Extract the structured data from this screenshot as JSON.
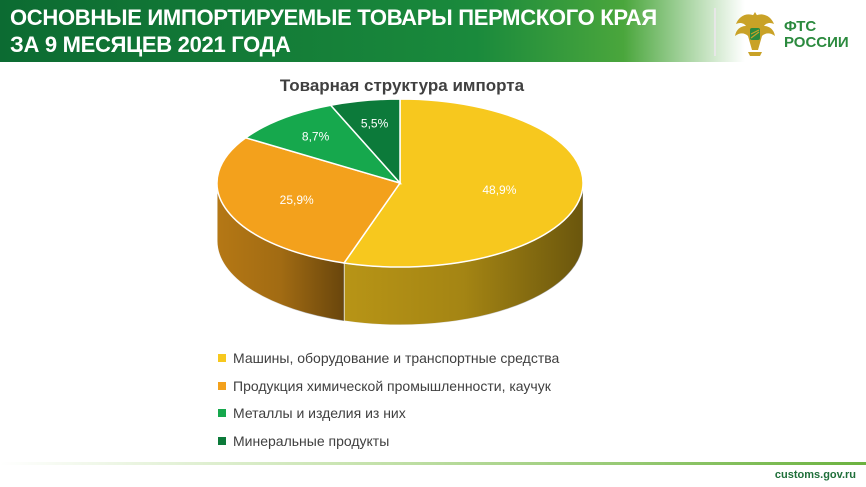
{
  "header": {
    "title_line1": "ОСНОВНЫЕ ИМПОРТИРУЕМЫЕ ТОВАРЫ ПЕРМСКОГО КРАЯ",
    "title_line2": "ЗА 9 МЕСЯЦЕВ 2021 ГОДА"
  },
  "logo": {
    "line1": "ФТС",
    "line2": "РОССИИ"
  },
  "footer": {
    "site": "customs.gov.ru"
  },
  "chart_data": {
    "type": "pie",
    "title": "Товарная структура импорта",
    "legend_position": "bottom",
    "slices": [
      {
        "label": "Машины, оборудование и транспортные средства",
        "value": 48.9,
        "value_label": "48,9%",
        "color": "#f7c81e"
      },
      {
        "label": "Продукция химической промышленности, каучук",
        "value": 25.9,
        "value_label": "25,9%",
        "color": "#f3a11c"
      },
      {
        "label": "Металлы и изделия из них",
        "value": 8.7,
        "value_label": "8,7%",
        "color": "#16a84d"
      },
      {
        "label": "Минеральные продукты",
        "value": 5.5,
        "value_label": "5,5%",
        "color": "#0c7a3a"
      }
    ]
  }
}
